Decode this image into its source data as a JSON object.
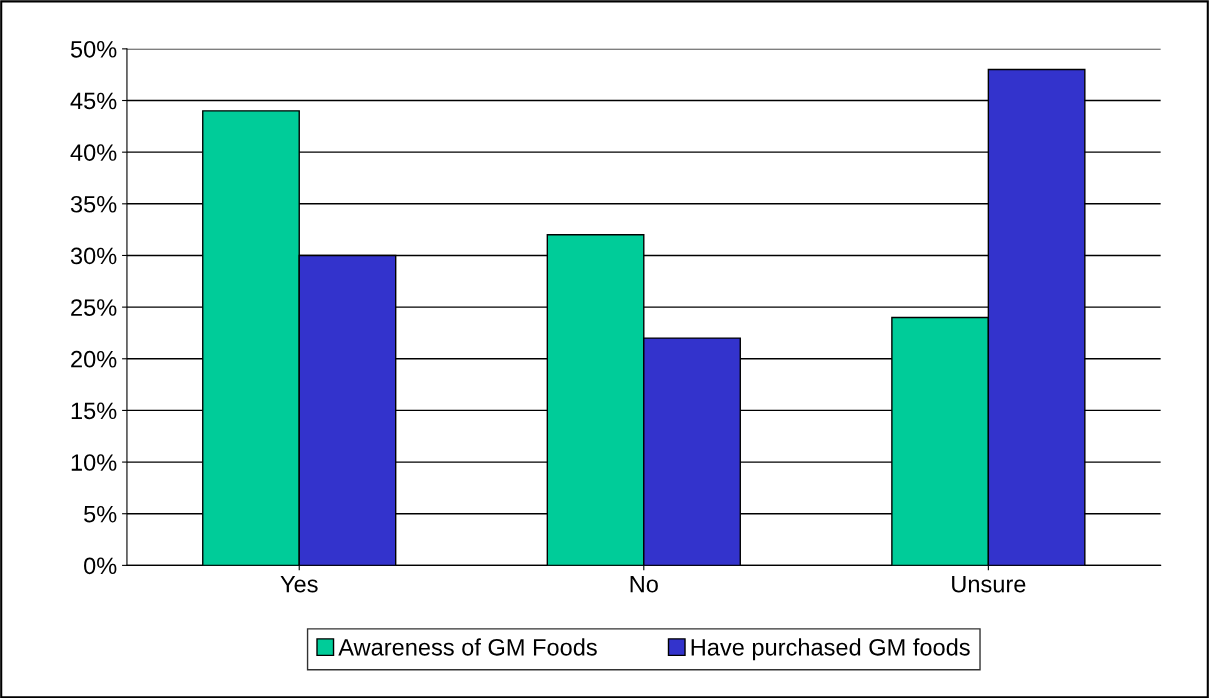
{
  "chart_data": {
    "type": "bar",
    "categories": [
      "Yes",
      "No",
      "Unsure"
    ],
    "series": [
      {
        "name": "Awareness of GM Foods",
        "color": "#00cc99",
        "values": [
          44,
          32,
          24
        ]
      },
      {
        "name": "Have purchased GM foods",
        "color": "#3333cc",
        "values": [
          30,
          22,
          48
        ]
      }
    ],
    "ylim": [
      0,
      50
    ],
    "yticks": [
      {
        "value": 0,
        "label": "0%"
      },
      {
        "value": 5,
        "label": "5%"
      },
      {
        "value": 10,
        "label": "10%"
      },
      {
        "value": 15,
        "label": "15%"
      },
      {
        "value": 20,
        "label": "20%"
      },
      {
        "value": 25,
        "label": "25%"
      },
      {
        "value": 30,
        "label": "30%"
      },
      {
        "value": 35,
        "label": "35%"
      },
      {
        "value": 40,
        "label": "40%"
      },
      {
        "value": 45,
        "label": "45%"
      },
      {
        "value": 50,
        "label": "50%"
      }
    ],
    "grid": "y",
    "legend": "bottom"
  }
}
